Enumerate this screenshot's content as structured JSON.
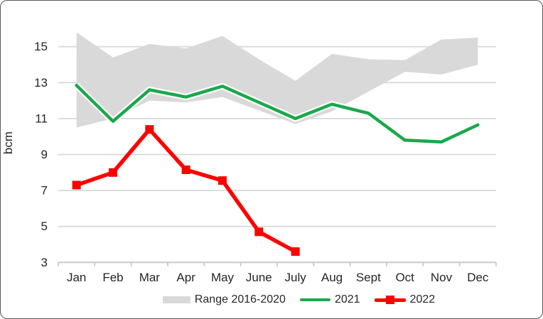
{
  "chart_data": {
    "type": "line",
    "title": "",
    "ylabel": "bcm",
    "xlabel": "",
    "categories": [
      "Jan",
      "Feb",
      "Mar",
      "Apr",
      "May",
      "June",
      "July",
      "Aug",
      "Sept",
      "Oct",
      "Nov",
      "Dec"
    ],
    "y_ticks": [
      3,
      5,
      7,
      9,
      11,
      13,
      15
    ],
    "ylim": [
      3,
      16.3
    ],
    "grid": true,
    "legend_position": "bottom",
    "band": {
      "name": "Range 2016-2020",
      "color": "#D9D9D9",
      "upper": [
        15.8,
        14.4,
        15.15,
        14.9,
        15.6,
        14.3,
        13.1,
        14.6,
        14.3,
        14.25,
        15.4,
        15.5
      ],
      "lower": [
        10.5,
        11.0,
        12.0,
        11.9,
        12.2,
        11.45,
        10.7,
        11.4,
        12.5,
        13.6,
        13.45,
        14.0
      ]
    },
    "series": [
      {
        "name": "2021",
        "color": "#1AA84C",
        "marker": "none",
        "values": [
          12.85,
          10.85,
          12.6,
          12.2,
          12.8,
          11.9,
          11.0,
          11.8,
          11.3,
          9.8,
          9.7,
          10.65
        ]
      },
      {
        "name": "2022",
        "color": "#FE0000",
        "marker": "square",
        "values": [
          7.3,
          8.0,
          10.4,
          8.15,
          7.55,
          4.7,
          3.6,
          null,
          null,
          null,
          null,
          null
        ]
      }
    ]
  },
  "axes": {
    "gridline_color": "#D9D9D9",
    "axis_line_color": "#C9C9C9",
    "text_color": "#262626"
  }
}
